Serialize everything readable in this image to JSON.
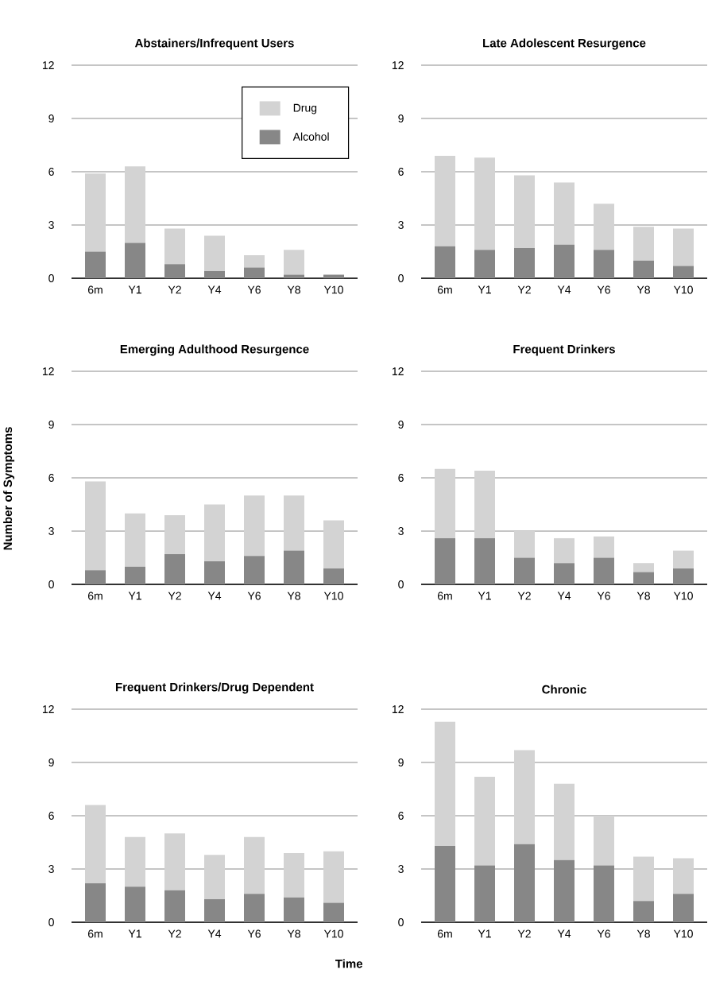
{
  "chart_data": [
    {
      "type": "bar",
      "stacked": true,
      "title": "Abstainers/Infrequent Users",
      "categories": [
        "6m",
        "Y1",
        "Y2",
        "Y4",
        "Y6",
        "Y8",
        "Y10"
      ],
      "ylim": [
        0,
        12
      ],
      "yticks": [
        0,
        3,
        6,
        9,
        12
      ],
      "grid": "y",
      "legend": "top right",
      "series": [
        {
          "name": "Alcohol",
          "color": "#878787",
          "values": [
            1.5,
            2.0,
            0.8,
            0.4,
            0.6,
            0.2,
            0.2
          ]
        },
        {
          "name": "Drug",
          "color": "#d3d3d3",
          "values": [
            4.4,
            4.3,
            2.0,
            2.0,
            0.7,
            1.4,
            null
          ]
        }
      ]
    },
    {
      "type": "bar",
      "stacked": true,
      "title": "Late Adolescent Resurgence",
      "categories": [
        "6m",
        "Y1",
        "Y2",
        "Y4",
        "Y6",
        "Y8",
        "Y10"
      ],
      "ylim": [
        0,
        12
      ],
      "yticks": [
        0,
        3,
        6,
        9,
        12
      ],
      "grid": "y",
      "series": [
        {
          "color": "#878787",
          "values": [
            1.8,
            1.6,
            1.7,
            1.9,
            1.6,
            1.0,
            0.7
          ]
        },
        {
          "color": "#d3d3d3",
          "values": [
            5.1,
            5.2,
            4.1,
            3.5,
            2.6,
            1.9,
            2.1
          ]
        }
      ]
    },
    {
      "type": "bar",
      "stacked": true,
      "title": "Emerging Adulthood Resurgence",
      "ylabel": "Number of Symptoms",
      "categories": [
        "6m",
        "Y1",
        "Y2",
        "Y4",
        "Y6",
        "Y8",
        "Y10"
      ],
      "ylim": [
        0,
        12
      ],
      "yticks": [
        0,
        3,
        6,
        9,
        12
      ],
      "grid": "y",
      "series": [
        {
          "color": "#878787",
          "values": [
            0.8,
            1.0,
            1.7,
            1.3,
            1.6,
            1.9,
            0.9
          ]
        },
        {
          "color": "#d3d3d3",
          "values": [
            5.0,
            3.0,
            2.2,
            3.2,
            3.4,
            3.1,
            2.7
          ]
        }
      ]
    },
    {
      "type": "bar",
      "stacked": true,
      "title": "Frequent Drinkers",
      "categories": [
        "6m",
        "Y1",
        "Y2",
        "Y4",
        "Y6",
        "Y8",
        "Y10"
      ],
      "ylim": [
        0,
        12
      ],
      "yticks": [
        0,
        3,
        6,
        9,
        12
      ],
      "grid": "y",
      "series": [
        {
          "color": "#878787",
          "values": [
            2.6,
            2.6,
            1.5,
            1.2,
            1.5,
            0.7,
            0.9
          ]
        },
        {
          "color": "#d3d3d3",
          "values": [
            3.9,
            3.8,
            1.5,
            1.4,
            1.2,
            0.5,
            1.0
          ]
        }
      ]
    },
    {
      "type": "bar",
      "stacked": true,
      "title": "Frequent Drinkers/Drug Dependent",
      "xlabel": "Time",
      "categories": [
        "6m",
        "Y1",
        "Y2",
        "Y4",
        "Y6",
        "Y8",
        "Y10"
      ],
      "ylim": [
        0,
        12
      ],
      "yticks": [
        0,
        3,
        6,
        9,
        12
      ],
      "grid": "y",
      "series": [
        {
          "color": "#878787",
          "values": [
            2.2,
            2.0,
            1.8,
            1.3,
            1.6,
            1.4,
            1.1
          ]
        },
        {
          "color": "#d3d3d3",
          "values": [
            4.4,
            2.8,
            3.2,
            2.5,
            3.2,
            2.5,
            2.9
          ]
        }
      ]
    },
    {
      "type": "bar",
      "stacked": true,
      "title": "Chronic",
      "categories": [
        "6m",
        "Y1",
        "Y2",
        "Y4",
        "Y6",
        "Y8",
        "Y10"
      ],
      "ylim": [
        0,
        12
      ],
      "yticks": [
        0,
        3,
        6,
        9,
        12
      ],
      "grid": "y",
      "series": [
        {
          "color": "#878787",
          "values": [
            4.3,
            3.2,
            4.4,
            3.5,
            3.2,
            1.2,
            1.6
          ]
        },
        {
          "color": "#d3d3d3",
          "values": [
            7.0,
            5.0,
            5.3,
            4.3,
            2.8,
            2.5,
            2.0
          ]
        }
      ]
    }
  ]
}
